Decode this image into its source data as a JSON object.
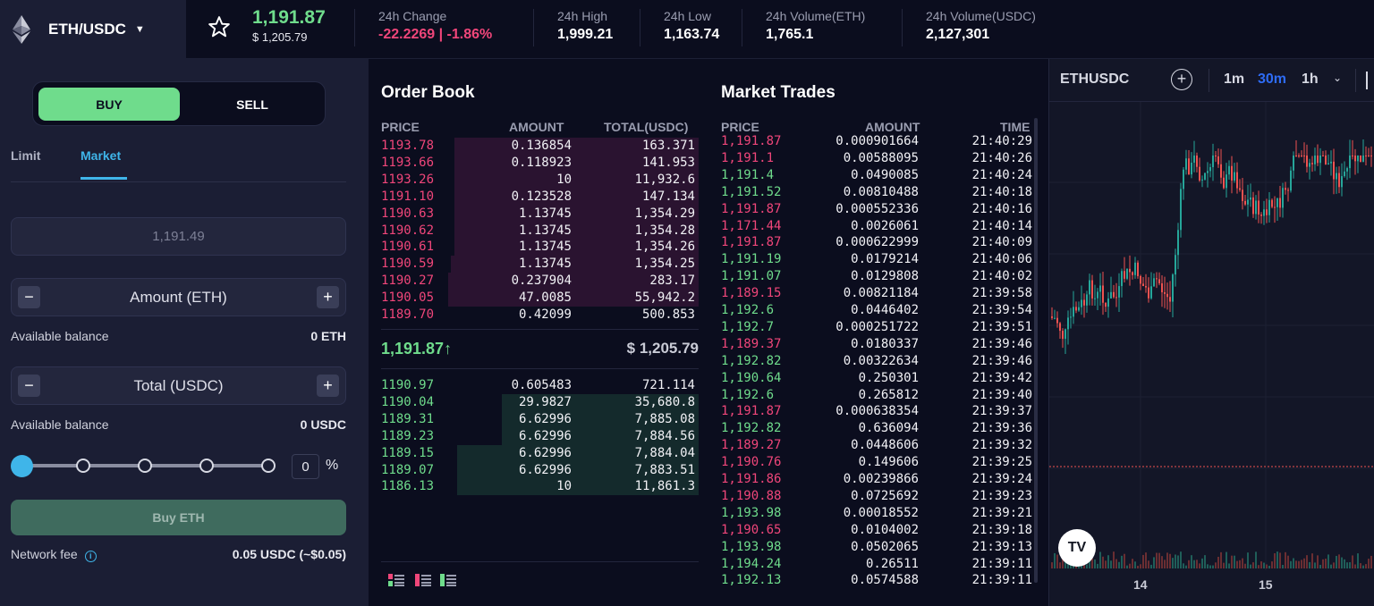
{
  "header": {
    "pair": "ETH/USDC",
    "last_price": "1,191.87",
    "last_price_usd": "$ 1,205.79",
    "stats": [
      {
        "label": "24h Change",
        "value": "-22.2269 | -1.86%"
      },
      {
        "label": "24h High",
        "value": "1,999.21"
      },
      {
        "label": "24h Low",
        "value": "1,163.74"
      },
      {
        "label": "24h Volume(ETH)",
        "value": "1,765.1"
      },
      {
        "label": "24h Volume(USDC)",
        "value": "2,127,301"
      }
    ]
  },
  "trade_form": {
    "buy_label": "BUY",
    "sell_label": "SELL",
    "tabs": [
      "Limit",
      "Market"
    ],
    "active_tab": "Market",
    "price_value": "1,191.49",
    "amount_placeholder": "Amount (ETH)",
    "total_placeholder": "Total (USDC)",
    "available_label": "Available balance",
    "available_eth": "0 ETH",
    "available_usdc": "0 USDC",
    "percent_value": "0",
    "percent_sign": "%",
    "percent_level": 0,
    "submit_label": "Buy ETH",
    "network_fee_label": "Network fee",
    "network_fee_value": "0.05 USDC (~$0.05)",
    "minus": "−",
    "plus": "+"
  },
  "order_book": {
    "title": "Order Book",
    "columns": [
      "PRICE",
      "AMOUNT",
      "TOTAL(USDC)"
    ],
    "asks": [
      {
        "price": "1193.78",
        "amount": "0.136854",
        "total": "163.371",
        "depth": 0.23
      },
      {
        "price": "1193.66",
        "amount": "0.118923",
        "total": "141.953",
        "depth": 0.23
      },
      {
        "price": "1193.26",
        "amount": "10",
        "total": "11,932.6",
        "depth": 0.23
      },
      {
        "price": "1191.10",
        "amount": "0.123528",
        "total": "147.134",
        "depth": 0.23
      },
      {
        "price": "1190.63",
        "amount": "1.13745",
        "total": "1,354.29",
        "depth": 0.23
      },
      {
        "price": "1190.62",
        "amount": "1.13745",
        "total": "1,354.28",
        "depth": 0.23
      },
      {
        "price": "1190.61",
        "amount": "1.13745",
        "total": "1,354.26",
        "depth": 0.23
      },
      {
        "price": "1190.59",
        "amount": "1.13745",
        "total": "1,354.25",
        "depth": 0.22
      },
      {
        "price": "1190.27",
        "amount": "0.237904",
        "total": "283.17",
        "depth": 0.21
      },
      {
        "price": "1190.05",
        "amount": "47.0085",
        "total": "55,942.2",
        "depth": 0.21
      },
      {
        "price": "1189.70",
        "amount": "0.42099",
        "total": "500.853",
        "depth": 0.0
      }
    ],
    "mid_price": "1,191.87↑",
    "mid_usd": "$ 1,205.79",
    "bids": [
      {
        "price": "1190.97",
        "amount": "0.605483",
        "total": "721.114",
        "depth": 0.0
      },
      {
        "price": "1190.04",
        "amount": "29.9827",
        "total": "35,680.8",
        "depth": 0.38
      },
      {
        "price": "1189.31",
        "amount": "6.62996",
        "total": "7,885.08",
        "depth": 0.38
      },
      {
        "price": "1189.23",
        "amount": "6.62996",
        "total": "7,884.56",
        "depth": 0.38
      },
      {
        "price": "1189.15",
        "amount": "6.62996",
        "total": "7,884.04",
        "depth": 0.24
      },
      {
        "price": "1189.07",
        "amount": "6.62996",
        "total": "7,883.51",
        "depth": 0.24
      },
      {
        "price": "1186.13",
        "amount": "10",
        "total": "11,861.3",
        "depth": 0.24
      }
    ]
  },
  "market_trades": {
    "title": "Market Trades",
    "columns": [
      "PRICE",
      "AMOUNT",
      "TIME"
    ],
    "rows": [
      {
        "price": "1,191.87",
        "amount": "0.000901664",
        "time": "21:40:29",
        "side": "down"
      },
      {
        "price": "1,191.1",
        "amount": "0.00588095",
        "time": "21:40:26",
        "side": "down"
      },
      {
        "price": "1,191.4",
        "amount": "0.0490085",
        "time": "21:40:24",
        "side": "up"
      },
      {
        "price": "1,191.52",
        "amount": "0.00810488",
        "time": "21:40:18",
        "side": "up"
      },
      {
        "price": "1,191.87",
        "amount": "0.000552336",
        "time": "21:40:16",
        "side": "down"
      },
      {
        "price": "1,171.44",
        "amount": "0.0026061",
        "time": "21:40:14",
        "side": "down"
      },
      {
        "price": "1,191.87",
        "amount": "0.000622999",
        "time": "21:40:09",
        "side": "down"
      },
      {
        "price": "1,191.19",
        "amount": "0.0179214",
        "time": "21:40:06",
        "side": "up"
      },
      {
        "price": "1,191.07",
        "amount": "0.0129808",
        "time": "21:40:02",
        "side": "up"
      },
      {
        "price": "1,189.15",
        "amount": "0.00821184",
        "time": "21:39:58",
        "side": "down"
      },
      {
        "price": "1,192.6",
        "amount": "0.0446402",
        "time": "21:39:54",
        "side": "up"
      },
      {
        "price": "1,192.7",
        "amount": "0.000251722",
        "time": "21:39:51",
        "side": "up"
      },
      {
        "price": "1,189.37",
        "amount": "0.0180337",
        "time": "21:39:46",
        "side": "down"
      },
      {
        "price": "1,192.82",
        "amount": "0.00322634",
        "time": "21:39:46",
        "side": "up"
      },
      {
        "price": "1,190.64",
        "amount": "0.250301",
        "time": "21:39:42",
        "side": "up"
      },
      {
        "price": "1,192.6",
        "amount": "0.265812",
        "time": "21:39:40",
        "side": "up"
      },
      {
        "price": "1,191.87",
        "amount": "0.000638354",
        "time": "21:39:37",
        "side": "down"
      },
      {
        "price": "1,192.82",
        "amount": "0.636094",
        "time": "21:39:36",
        "side": "up"
      },
      {
        "price": "1,189.27",
        "amount": "0.0448606",
        "time": "21:39:32",
        "side": "down"
      },
      {
        "price": "1,190.76",
        "amount": "0.149606",
        "time": "21:39:25",
        "side": "down"
      },
      {
        "price": "1,191.86",
        "amount": "0.00239866",
        "time": "21:39:24",
        "side": "down"
      },
      {
        "price": "1,190.88",
        "amount": "0.0725692",
        "time": "21:39:23",
        "side": "down"
      },
      {
        "price": "1,193.98",
        "amount": "0.00018552",
        "time": "21:39:21",
        "side": "up"
      },
      {
        "price": "1,190.65",
        "amount": "0.0104002",
        "time": "21:39:18",
        "side": "down"
      },
      {
        "price": "1,193.98",
        "amount": "0.0502065",
        "time": "21:39:13",
        "side": "up"
      },
      {
        "price": "1,194.24",
        "amount": "0.26511",
        "time": "21:39:11",
        "side": "up"
      },
      {
        "price": "1,192.13",
        "amount": "0.0574588",
        "time": "21:39:11",
        "side": "up"
      }
    ]
  },
  "chart": {
    "symbol": "ETHUSDC",
    "plus": "+",
    "intervals": [
      "1m",
      "30m",
      "1h"
    ],
    "active_interval": "30m",
    "logo_text": "TV",
    "x_ticks": [
      "14",
      "15"
    ],
    "colors": {
      "up": "#26a69a",
      "down": "#ef5350"
    }
  },
  "icons": [
    "eth-logo-icon",
    "chevron-down-icon",
    "star-icon",
    "info-icon",
    "view-both-icon",
    "view-asks-icon",
    "view-bids-icon",
    "plus-circle-icon",
    "candle-style-icon",
    "tradingview-logo-icon"
  ],
  "colors": {
    "buy": "#6fdc8c",
    "sell": "#f0467a",
    "accent": "#3fb5e9",
    "panel": "#1b1e34",
    "background": "#0b0d1e"
  }
}
